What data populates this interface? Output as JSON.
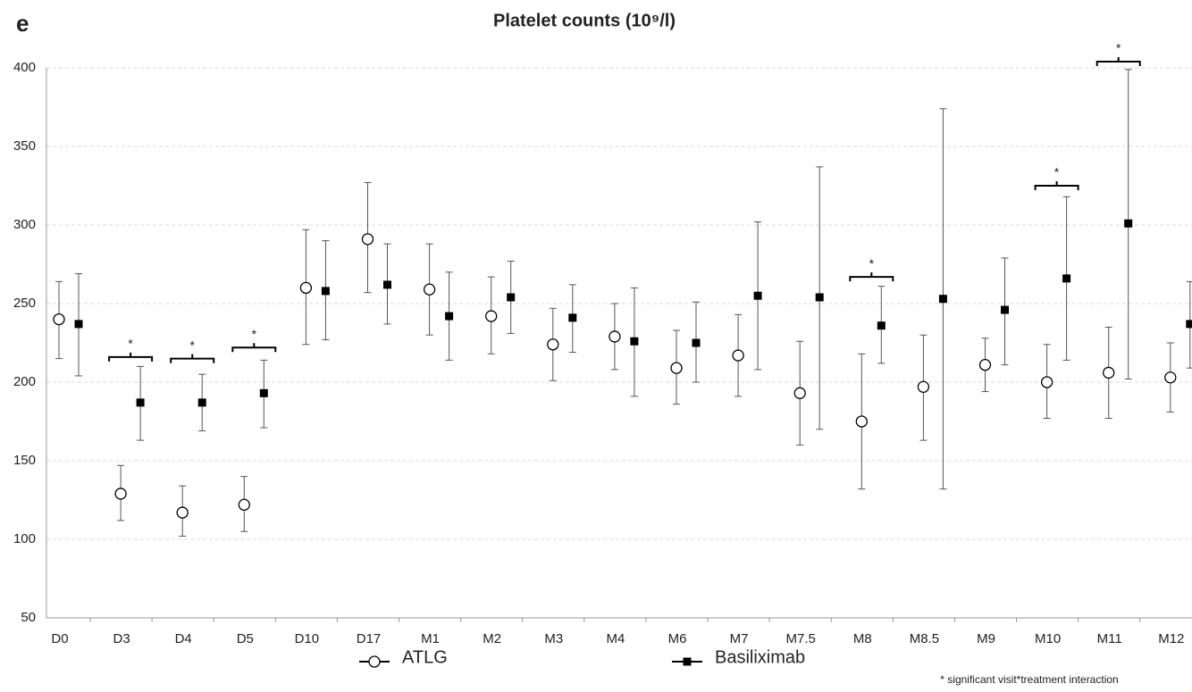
{
  "panel_label": "e",
  "chart_data": {
    "type": "errorbar",
    "title": "Platelet counts (10⁹/l)",
    "categories": [
      "D0",
      "D3",
      "D4",
      "D5",
      "D10",
      "D17",
      "M1",
      "M2",
      "M3",
      "M4",
      "M6",
      "M7",
      "M7.5",
      "M8",
      "M8.5",
      "M9",
      "M10",
      "M11",
      "M12"
    ],
    "series": [
      {
        "name": "ATLG",
        "marker": "open-circle",
        "color": "#000000",
        "values": [
          240,
          129,
          117,
          122,
          260,
          291,
          259,
          242,
          224,
          229,
          209,
          217,
          193,
          175,
          197,
          211,
          200,
          206,
          203
        ],
        "lower": [
          215,
          112,
          102,
          105,
          224,
          257,
          230,
          218,
          201,
          208,
          186,
          191,
          160,
          132,
          163,
          194,
          177,
          177,
          181
        ],
        "upper": [
          264,
          147,
          134,
          140,
          297,
          327,
          288,
          267,
          247,
          250,
          233,
          243,
          226,
          218,
          230,
          228,
          224,
          235,
          225
        ]
      },
      {
        "name": "Basiliximab",
        "marker": "filled-square",
        "color": "#000000",
        "values": [
          237,
          187,
          187,
          193,
          258,
          262,
          242,
          254,
          241,
          226,
          225,
          255,
          254,
          236,
          253,
          246,
          266,
          301,
          237
        ],
        "lower": [
          204,
          163,
          169,
          171,
          227,
          237,
          214,
          231,
          219,
          191,
          200,
          208,
          170,
          212,
          132,
          211,
          214,
          202,
          209
        ],
        "upper": [
          269,
          210,
          205,
          214,
          290,
          288,
          270,
          277,
          262,
          260,
          251,
          302,
          337,
          261,
          374,
          279,
          318,
          399,
          264
        ]
      }
    ],
    "annotations": [
      {
        "category": "D3",
        "text": "*",
        "y": 216
      },
      {
        "category": "D4",
        "text": "*",
        "y": 215
      },
      {
        "category": "D5",
        "text": "*",
        "y": 222
      },
      {
        "category": "M8",
        "text": "*",
        "y": 267
      },
      {
        "category": "M10",
        "text": "*",
        "y": 325
      },
      {
        "category": "M11",
        "text": "*",
        "y": 404
      }
    ],
    "footnote": "* significant visit*treatment interaction",
    "ylim": [
      50,
      400
    ],
    "yticks": [
      50,
      100,
      150,
      200,
      250,
      300,
      350,
      400
    ],
    "grid": true
  }
}
